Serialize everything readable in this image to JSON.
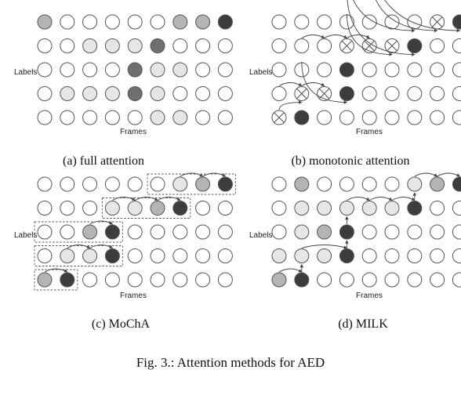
{
  "figure": {
    "caption": "Fig. 3.: Attention methods for AED",
    "axis_labels": {
      "y": "Labels",
      "x": "Frames"
    },
    "colors": {
      "empty": "#ffffff",
      "light": "#e6e6e6",
      "mid": "#b4b4b4",
      "dark": "#6f6f6f",
      "black": "#3c3c3c",
      "stroke": "#555555"
    },
    "panels": [
      {
        "id": "full-attention",
        "caption": "(a) full attention",
        "grid": [
          [
            "empty",
            "empty",
            "empty",
            "empty",
            "empty",
            "light",
            "light",
            "empty",
            "empty"
          ],
          [
            "empty",
            "light",
            "light",
            "light",
            "dark",
            "light",
            "empty",
            "empty",
            "empty"
          ],
          [
            "empty",
            "empty",
            "empty",
            "empty",
            "dark",
            "light",
            "light",
            "empty",
            "empty"
          ],
          [
            "empty",
            "empty",
            "light",
            "light",
            "light",
            "dark",
            "empty",
            "empty",
            "empty"
          ],
          [
            "mid",
            "empty",
            "empty",
            "empty",
            "empty",
            "empty",
            "mid",
            "mid",
            "black"
          ]
        ],
        "arrows": [],
        "boxes": []
      },
      {
        "id": "monotonic-attention",
        "caption": "(b) monotonic attention",
        "grid": [
          [
            "cross",
            "black",
            "empty",
            "empty",
            "empty",
            "empty",
            "empty",
            "empty",
            "empty"
          ],
          [
            "empty",
            "cross",
            "cross",
            "black",
            "empty",
            "empty",
            "empty",
            "empty",
            "empty"
          ],
          [
            "empty",
            "empty",
            "empty",
            "black",
            "empty",
            "empty",
            "empty",
            "empty",
            "empty"
          ],
          [
            "empty",
            "empty",
            "empty",
            "cross",
            "cross",
            "cross",
            "black",
            "empty",
            "empty"
          ],
          [
            "empty",
            "empty",
            "empty",
            "empty",
            "empty",
            "empty",
            "empty",
            "cross",
            "black"
          ]
        ],
        "arrows": [
          [
            0,
            0,
            1,
            1
          ],
          [
            0,
            1,
            1,
            1
          ],
          [
            1,
            1,
            2,
            1
          ],
          [
            1,
            2,
            3,
            1
          ],
          [
            1,
            3,
            2,
            3
          ],
          [
            2,
            3,
            3,
            3
          ],
          [
            3,
            3,
            4,
            3
          ],
          [
            3,
            4,
            5,
            3
          ],
          [
            3,
            5,
            6,
            3
          ],
          [
            3,
            6,
            6,
            4
          ],
          [
            4,
            6,
            7,
            4
          ],
          [
            4,
            7,
            8,
            4
          ]
        ],
        "boxes": []
      },
      {
        "id": "mocha",
        "caption": "(c) MoChA",
        "grid": [
          [
            "mid",
            "black",
            "empty",
            "empty",
            "empty",
            "empty",
            "empty",
            "empty",
            "empty"
          ],
          [
            "empty",
            "light",
            "light",
            "black",
            "empty",
            "empty",
            "empty",
            "empty",
            "empty"
          ],
          [
            "empty",
            "empty",
            "mid",
            "black",
            "empty",
            "empty",
            "empty",
            "empty",
            "empty"
          ],
          [
            "empty",
            "empty",
            "empty",
            "light",
            "light",
            "mid",
            "black",
            "empty",
            "empty"
          ],
          [
            "empty",
            "empty",
            "empty",
            "empty",
            "empty",
            "empty",
            "light",
            "mid",
            "black"
          ]
        ],
        "arrows": [
          [
            0,
            0,
            1,
            0
          ],
          [
            1,
            1,
            2,
            1
          ],
          [
            2,
            1,
            3,
            1
          ],
          [
            1,
            3,
            1,
            3
          ],
          [
            2,
            2,
            3,
            2
          ],
          [
            3,
            3,
            4,
            3
          ],
          [
            4,
            3,
            5,
            3
          ],
          [
            5,
            3,
            6,
            3
          ],
          [
            6,
            4,
            7,
            4
          ],
          [
            7,
            4,
            8,
            4
          ]
        ],
        "boxes": [
          [
            0,
            0,
            1,
            0
          ],
          [
            0,
            1,
            3,
            1
          ],
          [
            0,
            2,
            3,
            2
          ],
          [
            3,
            3,
            6,
            3
          ],
          [
            5,
            4,
            8,
            4
          ]
        ]
      },
      {
        "id": "milk",
        "caption": "(d) MILK",
        "grid": [
          [
            "mid",
            "black",
            "empty",
            "empty",
            "empty",
            "empty",
            "empty",
            "empty",
            "empty"
          ],
          [
            "light",
            "light",
            "light",
            "black",
            "empty",
            "empty",
            "empty",
            "empty",
            "empty"
          ],
          [
            "empty",
            "light",
            "mid",
            "black",
            "empty",
            "empty",
            "empty",
            "empty",
            "empty"
          ],
          [
            "empty",
            "light",
            "light",
            "light",
            "light",
            "light",
            "black",
            "empty",
            "empty"
          ],
          [
            "empty",
            "mid",
            "empty",
            "empty",
            "empty",
            "empty",
            "light",
            "mid",
            "black"
          ]
        ],
        "arrows": [
          [
            0,
            0,
            1,
            0
          ],
          [
            1,
            0,
            1,
            1
          ],
          [
            1,
            1,
            3,
            1
          ],
          [
            3,
            1,
            3,
            2
          ],
          [
            3,
            2,
            3,
            3
          ],
          [
            3,
            3,
            4,
            3
          ],
          [
            4,
            3,
            5,
            3
          ],
          [
            5,
            3,
            6,
            3
          ],
          [
            6,
            3,
            6,
            4
          ],
          [
            6,
            4,
            7,
            4
          ],
          [
            7,
            4,
            8,
            4
          ]
        ],
        "boxes": []
      }
    ]
  }
}
